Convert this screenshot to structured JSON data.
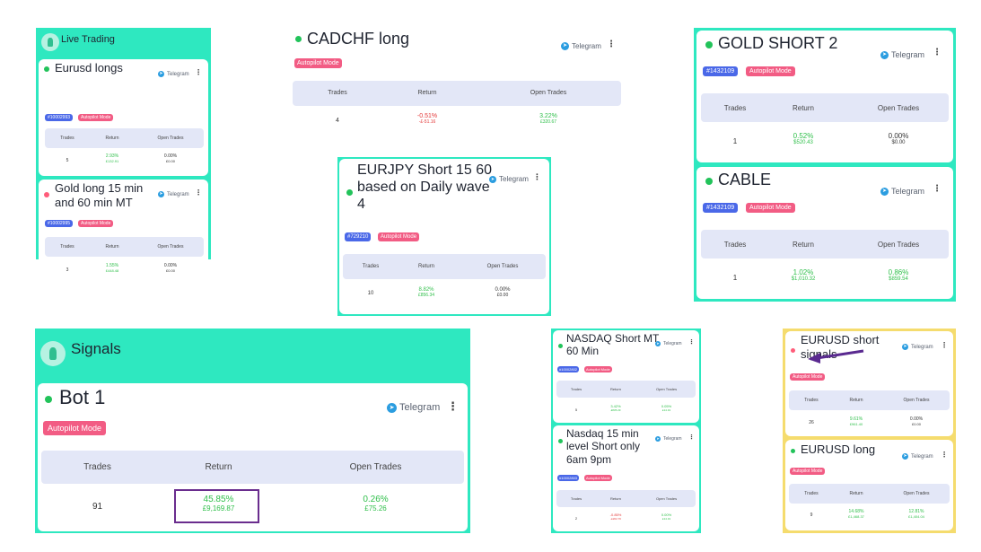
{
  "common": {
    "telegram": "Telegram",
    "autopilot": "Autopilot Mode",
    "col_trades": "Trades",
    "col_return": "Return",
    "col_open": "Open Trades"
  },
  "live_trading": {
    "header": "Live Trading",
    "cards": [
      {
        "title": "Eurusd longs",
        "id": "#10002993",
        "trades": "5",
        "ret": "2.93%",
        "ret_sub": "£132.91",
        "open": "0.00%",
        "open_sub": "£0.00",
        "status": "green"
      },
      {
        "title": "Gold long 15 min and 60 min MT",
        "id": "#10002995",
        "trades": "3",
        "ret": "1.55%",
        "ret_sub": "£448.48",
        "open": "0.00%",
        "open_sub": "£0.00",
        "status": "red"
      }
    ]
  },
  "cadchf": {
    "title": "CADCHF long",
    "trades": "4",
    "ret": "-0.51%",
    "ret_sub": "-£-51.16",
    "open": "3.22%",
    "open_sub": "£320.67"
  },
  "eurjpy": {
    "title": "EURJPY Short 15 60 based on Daily wave 4",
    "id": "#729210",
    "trades": "10",
    "ret": "8.82%",
    "ret_sub": "£856.34",
    "open": "0.00%",
    "open_sub": "£0.00"
  },
  "gold_short": {
    "title": "GOLD SHORT 2",
    "id": "#1432109",
    "trades": "1",
    "ret": "0.52%",
    "ret_sub": "$520.43",
    "open": "0.00%",
    "open_sub": "$0.00"
  },
  "cable": {
    "title": "CABLE",
    "id": "#1432109",
    "trades": "1",
    "ret": "1.02%",
    "ret_sub": "$1,010.32",
    "open": "0.86%",
    "open_sub": "$859.54"
  },
  "signals": {
    "header": "Signals",
    "title": "Bot 1",
    "trades": "91",
    "ret": "45.85%",
    "ret_sub": "£9,169.87",
    "open": "0.26%",
    "open_sub": "£75.26"
  },
  "nasdaq": {
    "cards": [
      {
        "title": "NASDAQ Short MT 60 Min",
        "id": "#10002802",
        "trades": "5",
        "ret": "3.42%",
        "ret_sub": "£835.29",
        "open": "0.05%",
        "open_sub": "£14.19"
      },
      {
        "title": "Nasdaq 15 min level Short only 6am 9pm",
        "id": "#10002803",
        "trades": "2",
        "ret": "-0.85%",
        "ret_sub": "-£202.76",
        "open": "0.00%",
        "open_sub": "£14.19"
      }
    ]
  },
  "eurusd": {
    "cards": [
      {
        "title": "EURUSD short signals",
        "trades": "26",
        "ret": "9.61%",
        "ret_sub": "£961.40",
        "open": "0.00%",
        "open_sub": "£0.00"
      },
      {
        "title": "EURUSD long",
        "trades": "9",
        "ret": "14.68%",
        "ret_sub": "£1,468.37",
        "open": "12.81%",
        "open_sub": "£1,404.04"
      }
    ]
  },
  "colors": {
    "teal": "#2ee8c0",
    "yellow": "#f5dc6e",
    "badge_blue": "#4a68e8",
    "badge_pink": "#f25c84",
    "positive": "#2fbf4a",
    "negative": "#e43a3a",
    "highlight": "#6a2d8e"
  }
}
